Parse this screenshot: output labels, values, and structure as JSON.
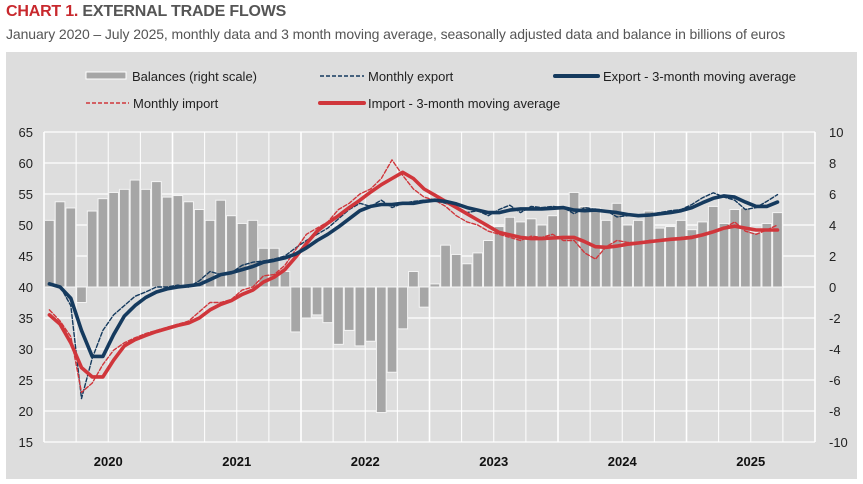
{
  "header": {
    "title_lead": "CHART 1.",
    "title_rest": " EXTERNAL TRADE FLOWS",
    "subtitle": "January 2020 – July 2025, monthly data and 3 month moving average, seasonally adjusted data and balance in billions of euros"
  },
  "colors": {
    "export": "#153a5e",
    "import": "#d0363b",
    "balance": "#a6a6a6",
    "panel": "#dddddd",
    "grid": "#ffffff",
    "title_accent": "#c8282d"
  },
  "chart_data": {
    "type": "bar+line",
    "title": "CHART 1. EXTERNAL TRADE FLOWS",
    "subtitle": "January 2020 – July 2025, monthly data and 3 month moving average, seasonally adjusted data and balance in billions of euros",
    "x_start": "2020-01",
    "x_end": "2025-12",
    "x_tick_labels": [
      "2020",
      "2021",
      "2022",
      "2023",
      "2024",
      "2025"
    ],
    "y_left": {
      "min": 15,
      "max": 65,
      "step": 5,
      "ticks": [
        "65",
        "60",
        "55",
        "50",
        "45",
        "40",
        "35",
        "30",
        "25",
        "20",
        "15"
      ]
    },
    "y_right": {
      "min": -10,
      "max": 10,
      "step": 2,
      "ticks": [
        "10",
        "8",
        "6",
        "4",
        "2",
        "0",
        "-2",
        "-4",
        "-6",
        "-8",
        "-10"
      ]
    },
    "grid": true,
    "legend": [
      {
        "key": "balance",
        "label": "Balances (right scale)",
        "style": "bar"
      },
      {
        "key": "export_monthly",
        "label": "Monthly export",
        "style": "dashed"
      },
      {
        "key": "export_ma",
        "label": "Export - 3-month moving average",
        "style": "thick"
      },
      {
        "key": "import_monthly",
        "label": "Monthly import",
        "style": "dashed"
      },
      {
        "key": "import_ma",
        "label": "Import - 3-month moving average",
        "style": "thick"
      }
    ],
    "legend_placement": "top",
    "series": [
      {
        "name": "Balances (right scale)",
        "axis": "right",
        "type": "bar",
        "values": [
          4.3,
          5.5,
          5.1,
          -1.0,
          4.9,
          5.7,
          6.1,
          6.3,
          6.9,
          6.3,
          6.8,
          5.8,
          5.9,
          5.5,
          5.0,
          4.3,
          5.6,
          4.6,
          4.1,
          4.3,
          2.5,
          2.5,
          1.0,
          -2.9,
          -2.0,
          -1.8,
          -2.3,
          -3.7,
          -2.8,
          -3.8,
          -3.5,
          -8.1,
          -5.5,
          -2.7,
          1.0,
          -1.3,
          0.2,
          2.7,
          2.1,
          1.5,
          2.2,
          3.0,
          3.9,
          4.5,
          4.2,
          4.4,
          4.0,
          4.6,
          5.1,
          6.1,
          5.2,
          5.1,
          4.3,
          5.4,
          4.0,
          4.3,
          4.9,
          3.8,
          3.9,
          4.3,
          3.7,
          4.2,
          5.2,
          4.1,
          5.0,
          5.1,
          3.5,
          4.1,
          4.8,
          null,
          null,
          null
        ]
      },
      {
        "name": "Monthly export",
        "axis": "left",
        "type": "line",
        "values": [
          40.5,
          40.1,
          37.0,
          22.0,
          28.5,
          33.0,
          35.5,
          37.0,
          38.5,
          39.2,
          40.0,
          40.0,
          40.3,
          40.0,
          41.0,
          42.5,
          42.0,
          42.3,
          43.5,
          44.0,
          44.2,
          44.5,
          45.0,
          46.3,
          47.5,
          48.5,
          49.5,
          51.0,
          52.5,
          53.5,
          53.0,
          54.0,
          52.8,
          53.5,
          53.8,
          54.0,
          54.0,
          53.5,
          53.0,
          52.0,
          52.3,
          51.5,
          52.5,
          53.2,
          52.0,
          53.0,
          52.8,
          53.0,
          52.8,
          51.8,
          52.8,
          52.5,
          52.3,
          51.3,
          51.5,
          51.6,
          51.7,
          52.0,
          52.3,
          52.5,
          53.3,
          54.4,
          55.2,
          54.5,
          54.0,
          52.5,
          52.8,
          53.8,
          54.9,
          null,
          null,
          null
        ]
      },
      {
        "name": "Export - 3-month moving average",
        "axis": "left",
        "type": "line",
        "values": [
          40.5,
          40.0,
          38.2,
          33.0,
          28.8,
          28.8,
          32.3,
          35.3,
          37.0,
          38.3,
          39.2,
          39.7,
          40.0,
          40.2,
          40.4,
          41.2,
          42.0,
          42.3,
          42.8,
          43.3,
          44.0,
          44.3,
          44.7,
          45.3,
          46.3,
          47.5,
          48.5,
          49.7,
          51.0,
          52.3,
          53.0,
          53.3,
          53.3,
          53.5,
          53.5,
          53.8,
          54.0,
          53.8,
          53.4,
          52.8,
          52.4,
          52.0,
          52.0,
          52.4,
          52.6,
          52.6,
          52.6,
          52.7,
          52.8,
          52.4,
          52.3,
          52.4,
          52.2,
          52.0,
          51.7,
          51.5,
          51.6,
          51.8,
          52.0,
          52.3,
          52.8,
          53.6,
          54.3,
          54.7,
          54.5,
          53.7,
          53.0,
          53.0,
          53.7,
          null,
          null,
          null
        ]
      },
      {
        "name": "Monthly import",
        "axis": "left",
        "type": "line",
        "values": [
          36.3,
          34.5,
          32.0,
          23.0,
          24.5,
          27.5,
          29.8,
          31.0,
          31.8,
          32.5,
          33.0,
          33.5,
          34.0,
          34.5,
          36.0,
          37.5,
          37.5,
          38.0,
          39.5,
          40.0,
          41.8,
          42.0,
          43.5,
          46.0,
          48.5,
          49.5,
          50.5,
          52.5,
          53.5,
          55.0,
          55.8,
          57.5,
          60.5,
          58.0,
          55.8,
          54.5,
          54.0,
          53.0,
          51.5,
          50.5,
          50.0,
          49.0,
          48.5,
          48.0,
          47.5,
          48.2,
          48.0,
          48.5,
          47.5,
          47.5,
          45.5,
          44.5,
          46.5,
          47.5,
          47.2,
          47.2,
          47.5,
          47.5,
          47.7,
          48.0,
          48.2,
          48.5,
          49.0,
          49.5,
          50.5,
          49.0,
          48.5,
          49.2,
          50.0,
          null,
          null,
          null
        ]
      },
      {
        "name": "Import - 3-month moving average",
        "axis": "left",
        "type": "line",
        "values": [
          35.5,
          34.0,
          31.0,
          27.0,
          25.5,
          25.5,
          28.2,
          30.5,
          31.5,
          32.2,
          32.8,
          33.3,
          33.8,
          34.2,
          35.0,
          36.3,
          37.2,
          37.8,
          38.8,
          39.5,
          40.8,
          41.6,
          42.8,
          44.8,
          47.0,
          49.0,
          50.3,
          51.5,
          52.8,
          54.0,
          55.3,
          56.5,
          57.5,
          58.5,
          57.5,
          55.8,
          54.8,
          53.8,
          52.8,
          51.8,
          50.8,
          49.8,
          48.8,
          48.4,
          48.0,
          47.8,
          47.8,
          47.9,
          48.0,
          48.0,
          47.3,
          46.5,
          46.4,
          46.6,
          46.9,
          47.1,
          47.3,
          47.5,
          47.7,
          47.8,
          48.0,
          48.4,
          48.9,
          49.5,
          49.8,
          49.5,
          49.2,
          49.2,
          49.2,
          null,
          null,
          null
        ]
      }
    ]
  }
}
